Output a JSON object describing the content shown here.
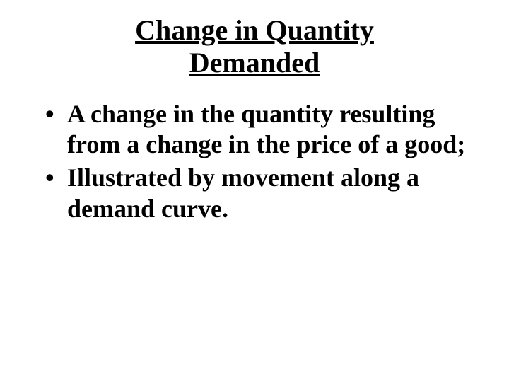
{
  "slide": {
    "title_line1": "Change in Quantity",
    "title_line2": "Demanded",
    "title_fontsize": 40,
    "bullet_fontsize": 36,
    "text_color": "#000000",
    "background_color": "#ffffff",
    "bullets": [
      "A change in the quantity resulting from a change in the price of a good;",
      "Illustrated by movement along a demand curve."
    ]
  }
}
